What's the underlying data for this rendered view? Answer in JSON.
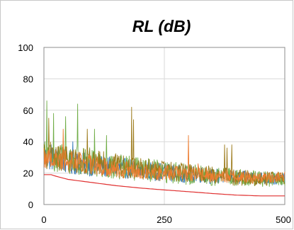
{
  "chart_data": {
    "type": "line",
    "title": "RL (dB)",
    "xlabel": "",
    "ylabel": "",
    "xlim": [
      0,
      500
    ],
    "ylim": [
      0,
      100
    ],
    "x_ticks": [
      "0",
      "250",
      "500"
    ],
    "y_ticks": [
      "0",
      "20",
      "40",
      "60",
      "80",
      "100"
    ],
    "grid": true,
    "legend": "none",
    "series": [
      {
        "color": "#2e75b6",
        "x": [
          0,
          25,
          50,
          75,
          100,
          125,
          150,
          175,
          200,
          225,
          250,
          275,
          300,
          325,
          350,
          375,
          400,
          425,
          450,
          475,
          500
        ],
        "values": [
          30,
          29,
          27,
          26,
          25,
          24,
          23,
          23,
          22,
          21,
          21,
          20,
          19,
          19,
          18,
          18,
          17,
          17,
          17,
          16,
          16
        ],
        "noise": 8,
        "spikes": [
          [
            15,
            38
          ],
          [
            60,
            40
          ]
        ]
      },
      {
        "color": "#70ad47",
        "x": [
          0,
          25,
          50,
          75,
          100,
          125,
          150,
          175,
          200,
          225,
          250,
          275,
          300,
          325,
          350,
          375,
          400,
          425,
          450,
          475,
          500
        ],
        "values": [
          31,
          30,
          29,
          28,
          27,
          25,
          24,
          23,
          22,
          22,
          21,
          20,
          19,
          19,
          18,
          18,
          17,
          17,
          16,
          16,
          16
        ],
        "noise": 10,
        "spikes": [
          [
            6,
            66
          ],
          [
            20,
            58
          ],
          [
            45,
            56
          ],
          [
            70,
            64
          ],
          [
            105,
            48
          ],
          [
            130,
            44
          ]
        ]
      },
      {
        "color": "#9c7a1a",
        "x": [
          0,
          25,
          50,
          75,
          100,
          125,
          150,
          175,
          200,
          225,
          250,
          275,
          300,
          325,
          350,
          375,
          400,
          425,
          450,
          475,
          500
        ],
        "values": [
          32,
          30,
          29,
          28,
          27,
          26,
          25,
          24,
          23,
          22,
          21,
          21,
          20,
          20,
          19,
          18,
          17,
          17,
          16,
          17,
          17
        ],
        "noise": 9,
        "spikes": [
          [
            10,
            55
          ],
          [
            90,
            48
          ],
          [
            182,
            62
          ],
          [
            186,
            54
          ],
          [
            375,
            38
          ],
          [
            380,
            36
          ],
          [
            390,
            38
          ]
        ]
      },
      {
        "color": "#ed7d31",
        "x": [
          0,
          25,
          50,
          75,
          100,
          125,
          150,
          175,
          200,
          225,
          250,
          275,
          300,
          325,
          350,
          375,
          400,
          425,
          450,
          475,
          500
        ],
        "values": [
          30,
          29,
          28,
          27,
          25,
          24,
          23,
          22,
          22,
          21,
          20,
          20,
          19,
          19,
          18,
          18,
          18,
          17,
          17,
          17,
          18
        ],
        "noise": 7,
        "spikes": [
          [
            40,
            48
          ],
          [
            300,
            44
          ],
          [
            320,
            26
          ]
        ]
      },
      {
        "color": "#e03030",
        "x": [
          0,
          15,
          25,
          50,
          75,
          100,
          150,
          200,
          250,
          300,
          350,
          400,
          450,
          500
        ],
        "values": [
          19,
          19,
          18,
          16,
          15,
          14,
          12,
          10.5,
          9.3,
          8.2,
          7,
          6,
          5.5,
          5.5
        ],
        "noise": 0,
        "spikes": []
      }
    ]
  }
}
